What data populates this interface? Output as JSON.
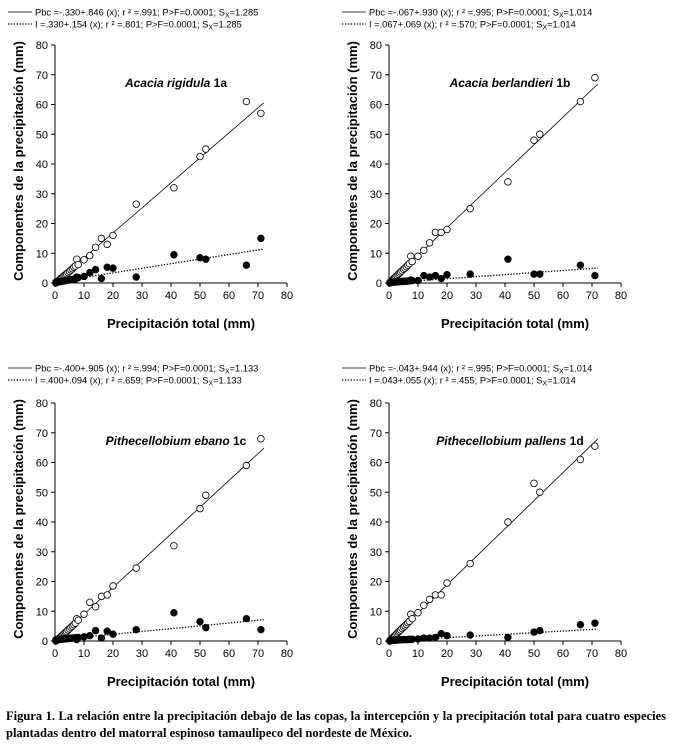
{
  "chart_data": [
    {
      "type": "scatter",
      "title": "Acacia rigidula 1a",
      "xlabel": "Precipitación total (mm)",
      "ylabel": "Componentes de la precipitación (mm)",
      "xlim": [
        0,
        80
      ],
      "ylim": [
        0,
        80
      ],
      "xticks": [
        "0",
        "10",
        "20",
        "30",
        "40",
        "50",
        "60",
        "70",
        "80"
      ],
      "yticks": [
        "0",
        "10",
        "20",
        "30",
        "40",
        "50",
        "60",
        "70",
        "80"
      ],
      "grid": false,
      "legend": [
        {
          "label": "Pbc =-.330+.846 (x);  r ² =.991;  P>F=0.0001;  S",
          "sub": "X",
          "tail": "=1.285",
          "style": "solid"
        },
        {
          "label": "I =.330+.154 (x);  r ² =.801;  P>F=0.0001;  S",
          "sub": "X",
          "tail": "=1.285",
          "style": "dotted"
        }
      ],
      "series": [
        {
          "name": "Pbc",
          "marker": "open",
          "line": [
            -0.33,
            0.846
          ],
          "x": [
            0.3,
            0.6,
            1,
            1.3,
            1.7,
            2,
            2.4,
            2.8,
            3.2,
            3.6,
            4,
            4.5,
            5,
            5.5,
            6,
            6.5,
            7,
            7.5,
            8,
            10,
            12,
            14,
            16,
            18,
            20,
            28,
            41,
            50,
            52,
            66,
            71
          ],
          "y": [
            0,
            0.3,
            0.6,
            0.9,
            1.2,
            1.5,
            1.8,
            2.1,
            2.5,
            2.8,
            3.1,
            3.5,
            3.9,
            4.4,
            4.8,
            5.3,
            5.7,
            8,
            6.2,
            7.8,
            9.2,
            12,
            15,
            13,
            16,
            26.5,
            32,
            42.5,
            45,
            61,
            57
          ]
        },
        {
          "name": "I",
          "marker": "filled",
          "line": [
            0.33,
            0.154
          ],
          "x": [
            0.3,
            0.6,
            1,
            1.3,
            1.7,
            2,
            2.4,
            2.8,
            3.2,
            3.6,
            4,
            4.5,
            5,
            5.5,
            6,
            6.5,
            7,
            7.5,
            8,
            10,
            12,
            14,
            16,
            18,
            20,
            28,
            41,
            50,
            52,
            66,
            71
          ],
          "y": [
            0.3,
            0.3,
            0.4,
            0.4,
            0.5,
            0.5,
            0.6,
            0.7,
            0.7,
            0.8,
            0.9,
            1,
            1.1,
            1.1,
            1.2,
            1.2,
            1.3,
            2,
            1.8,
            2.2,
            3.5,
            4.5,
            1.5,
            5.3,
            5,
            2,
            9.5,
            8.5,
            8,
            6,
            15
          ]
        }
      ]
    },
    {
      "type": "scatter",
      "title": "Acacia berlandieri 1b",
      "xlabel": "Precipitación total (mm)",
      "ylabel": "Componentes de la precipitación (mm)",
      "xlim": [
        0,
        80
      ],
      "ylim": [
        0,
        80
      ],
      "xticks": [
        "0",
        "10",
        "20",
        "30",
        "40",
        "50",
        "60",
        "70",
        "80"
      ],
      "yticks": [
        "0",
        "10",
        "20",
        "30",
        "40",
        "50",
        "60",
        "70",
        "80"
      ],
      "grid": false,
      "legend": [
        {
          "label": "Pbc =-.067+.930 (x);  r ² =.995;  P>F=0.0001;  S",
          "sub": "X",
          "tail": "=1.014",
          "style": "solid"
        },
        {
          "label": "I =.067+.069 (x);  r ² =.570;  P>F=0.0001;  S",
          "sub": "X",
          "tail": "=1.014",
          "style": "dotted"
        }
      ],
      "series": [
        {
          "name": "Pbc",
          "marker": "open",
          "line": [
            -0.067,
            0.93
          ],
          "x": [
            0.3,
            0.6,
            1,
            1.3,
            1.7,
            2,
            2.4,
            2.8,
            3.2,
            3.6,
            4,
            4.5,
            5,
            5.5,
            6,
            6.5,
            7,
            7.5,
            8,
            10,
            12,
            14,
            16,
            18,
            20,
            28,
            41,
            50,
            52,
            66,
            71
          ],
          "y": [
            0,
            0.4,
            0.8,
            1.1,
            1.5,
            1.8,
            2.2,
            2.5,
            2.9,
            3.3,
            3.7,
            4.1,
            4.6,
            5,
            5.5,
            6,
            6.5,
            9,
            7.2,
            9,
            11,
            13.5,
            17,
            17,
            18,
            25,
            34,
            48,
            50,
            61,
            69
          ]
        },
        {
          "name": "I",
          "marker": "filled",
          "line": [
            0.067,
            0.069
          ],
          "x": [
            0.3,
            0.6,
            1,
            1.3,
            1.7,
            2,
            2.4,
            2.8,
            3.2,
            3.6,
            4,
            4.5,
            5,
            5.5,
            6,
            6.5,
            7,
            7.5,
            8,
            10,
            12,
            14,
            16,
            18,
            20,
            28,
            41,
            50,
            52,
            66,
            71
          ],
          "y": [
            0.2,
            0.2,
            0.3,
            0.3,
            0.3,
            0.3,
            0.4,
            0.4,
            0.4,
            0.5,
            0.5,
            0.5,
            0.6,
            0.6,
            0.6,
            0.7,
            0.7,
            1,
            0.8,
            0.8,
            2.5,
            2,
            2.5,
            1.5,
            2.8,
            3,
            8,
            3,
            3,
            6,
            2.5
          ]
        }
      ]
    },
    {
      "type": "scatter",
      "title": "Pithecellobium ebano 1c",
      "xlabel": "Precipitación total (mm)",
      "ylabel": "Componentes de la precipitación (mm)",
      "xlim": [
        0,
        80
      ],
      "ylim": [
        0,
        80
      ],
      "xticks": [
        "0",
        "10",
        "20",
        "30",
        "40",
        "50",
        "60",
        "70",
        "80"
      ],
      "yticks": [
        "0",
        "10",
        "20",
        "30",
        "40",
        "50",
        "60",
        "70",
        "80"
      ],
      "grid": false,
      "legend": [
        {
          "label": "Pbc =-.400+.905 (x);  r ² =.994;  P>F=0.0001;  S",
          "sub": "X",
          "tail": "=1.133",
          "style": "solid"
        },
        {
          "label": "I =.400+.094 (x);  r ² =.659;  P>F=0.0001;  S",
          "sub": "X",
          "tail": "=1.133",
          "style": "dotted"
        }
      ],
      "series": [
        {
          "name": "Pbc",
          "marker": "open",
          "line": [
            -0.4,
            0.905
          ],
          "x": [
            0.3,
            0.6,
            1,
            1.3,
            1.7,
            2,
            2.4,
            2.8,
            3.2,
            3.6,
            4,
            4.5,
            5,
            5.5,
            6,
            6.5,
            7,
            7.5,
            8,
            10,
            12,
            14,
            16,
            18,
            20,
            28,
            41,
            50,
            52,
            66,
            71
          ],
          "y": [
            0,
            0.2,
            0.5,
            0.8,
            1.1,
            1.4,
            1.8,
            2.1,
            2.5,
            2.9,
            3.2,
            3.7,
            4.1,
            4.6,
            5,
            5.5,
            6,
            7.5,
            7,
            9,
            13,
            11.5,
            15,
            15.5,
            18.5,
            24.5,
            32,
            44.5,
            49,
            59,
            68
          ]
        },
        {
          "name": "I",
          "marker": "filled",
          "line": [
            0.4,
            0.094
          ],
          "x": [
            0.3,
            0.6,
            1,
            1.3,
            1.7,
            2,
            2.4,
            2.8,
            3.2,
            3.6,
            4,
            4.5,
            5,
            5.5,
            6,
            6.5,
            7,
            7.5,
            8,
            10,
            12,
            14,
            16,
            18,
            20,
            28,
            41,
            50,
            52,
            66,
            71
          ],
          "y": [
            0.4,
            0.4,
            0.5,
            0.5,
            0.6,
            0.6,
            0.6,
            0.7,
            0.7,
            0.7,
            0.8,
            0.8,
            0.9,
            0.9,
            1,
            1,
            1.1,
            0.5,
            1.2,
            1.4,
            1.8,
            3.5,
            1,
            3.3,
            2.3,
            3.8,
            9.5,
            6.5,
            4.5,
            7.5,
            3.8
          ]
        }
      ]
    },
    {
      "type": "scatter",
      "title": "Pithecellobium pallens 1d",
      "xlabel": "Precipitación total (mm)",
      "ylabel": "Componentes de la precipitación (mm)",
      "xlim": [
        0,
        80
      ],
      "ylim": [
        0,
        80
      ],
      "xticks": [
        "0",
        "10",
        "20",
        "30",
        "40",
        "50",
        "60",
        "70",
        "80"
      ],
      "yticks": [
        "0",
        "10",
        "20",
        "30",
        "40",
        "50",
        "60",
        "70",
        "80"
      ],
      "grid": false,
      "legend": [
        {
          "label": "Pbc =-.043+.944 (x);  r ² =.995;  P>F=0.0001;  S",
          "sub": "X",
          "tail": "=1.014",
          "style": "solid"
        },
        {
          "label": "I =.043+.055 (x);  r ² =.455;  P>F=0.0001;  S",
          "sub": "X",
          "tail": "=1.014",
          "style": "dotted"
        }
      ],
      "series": [
        {
          "name": "Pbc",
          "marker": "open",
          "line": [
            -0.043,
            0.944
          ],
          "x": [
            0.3,
            0.6,
            1,
            1.3,
            1.7,
            2,
            2.4,
            2.8,
            3.2,
            3.6,
            4,
            4.5,
            5,
            5.5,
            6,
            6.5,
            7,
            7.5,
            8,
            10,
            12,
            14,
            16,
            18,
            20,
            28,
            41,
            50,
            52,
            66,
            71
          ],
          "y": [
            0,
            0.3,
            0.7,
            1.1,
            1.5,
            1.8,
            2.2,
            2.6,
            3,
            3.3,
            3.7,
            4.2,
            4.7,
            5.1,
            5.6,
            6.1,
            6.6,
            9,
            7.5,
            9.5,
            12,
            14,
            15.5,
            15.5,
            19.5,
            26,
            40,
            53,
            50,
            61,
            65.5
          ]
        },
        {
          "name": "I",
          "marker": "filled",
          "line": [
            0.043,
            0.055
          ],
          "x": [
            0.3,
            0.6,
            1,
            1.3,
            1.7,
            2,
            2.4,
            2.8,
            3.2,
            3.6,
            4,
            4.5,
            5,
            5.5,
            6,
            6.5,
            7,
            7.5,
            8,
            10,
            12,
            14,
            16,
            18,
            20,
            28,
            41,
            50,
            52,
            66,
            71
          ],
          "y": [
            0.2,
            0.2,
            0.2,
            0.2,
            0.3,
            0.3,
            0.3,
            0.3,
            0.4,
            0.4,
            0.4,
            0.4,
            0.5,
            0.5,
            0.5,
            0.5,
            0.6,
            0.5,
            0.6,
            0.7,
            1,
            1,
            1.2,
            2.5,
            1.8,
            2,
            1.2,
            3,
            3.5,
            5.5,
            6
          ]
        }
      ]
    }
  ],
  "caption": "Figura 1. La relación entre la precipitación debajo de las copas, la intercepción y la precipitación total para cuatro especies plantadas dentro del matorral espinoso tamaulipeco del nordeste de México."
}
